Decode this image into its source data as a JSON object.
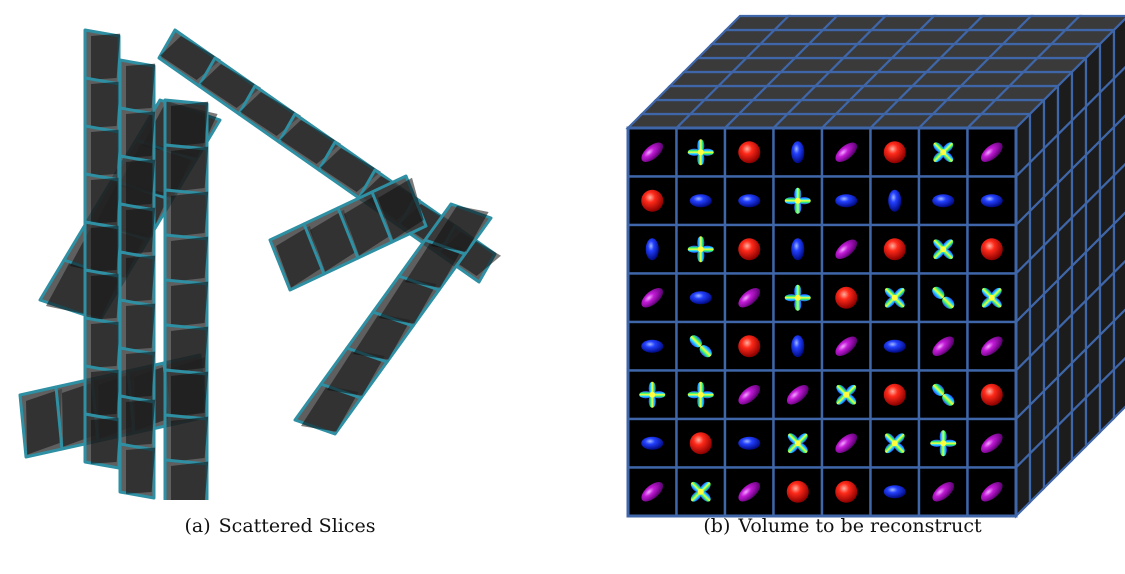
{
  "figure": {
    "panels": [
      {
        "label": "(a)",
        "caption": "Scattered Slices"
      },
      {
        "label": "(b)",
        "caption": "Volume to be reconstruct"
      }
    ]
  },
  "colors": {
    "slice_edge": "#2f8fa3",
    "slice_fill": "#3c3c3c",
    "cube_edge": "#3f66a8",
    "cell_bg": "#000000"
  },
  "glyph_grid": [
    [
      "purple-ellipse",
      "plus",
      "red-sphere",
      "blue-ellipse-v",
      "purple-ellipse",
      "red-sphere",
      "x",
      "purple-ellipse"
    ],
    [
      "red-sphere",
      "blue-ellipse-h",
      "blue-ellipse-h",
      "plus",
      "blue-ellipse-h",
      "blue-ellipse-v",
      "blue-ellipse-h",
      "blue-ellipse-h"
    ],
    [
      "blue-ellipse-v",
      "plus",
      "red-sphere",
      "blue-ellipse-v",
      "purple-ellipse",
      "red-sphere",
      "x",
      "red-sphere"
    ],
    [
      "purple-ellipse",
      "blue-ellipse-h",
      "purple-ellipse",
      "plus",
      "red-sphere",
      "x",
      "dumbbell",
      "x"
    ],
    [
      "blue-ellipse-h",
      "dumbbell",
      "red-sphere",
      "blue-ellipse-v",
      "purple-ellipse",
      "blue-ellipse-h",
      "purple-ellipse",
      "purple-ellipse"
    ],
    [
      "plus",
      "plus",
      "purple-ellipse",
      "purple-ellipse",
      "x",
      "red-sphere",
      "dumbbell",
      "red-sphere"
    ],
    [
      "blue-ellipse-h",
      "red-sphere",
      "blue-ellipse-h",
      "x",
      "purple-ellipse",
      "x",
      "plus",
      "purple-ellipse"
    ],
    [
      "purple-ellipse",
      "x",
      "purple-ellipse",
      "red-sphere",
      "red-sphere",
      "blue-ellipse-h",
      "purple-ellipse",
      "purple-ellipse"
    ]
  ]
}
